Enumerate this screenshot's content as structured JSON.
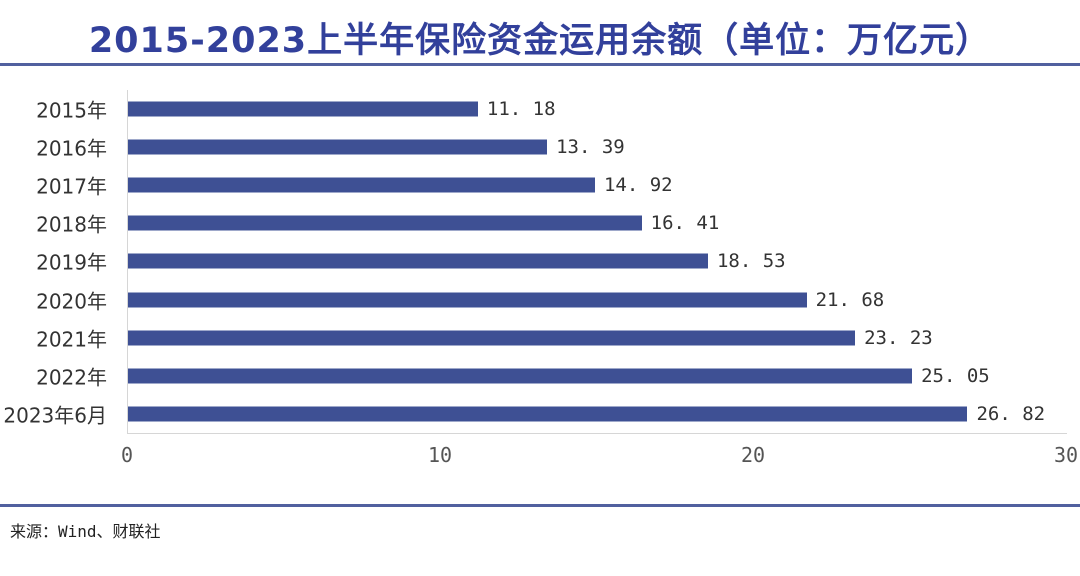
{
  "title": "2015-2023上半年保险资金运用余额（单位：万亿元）",
  "source": "来源：Wind、财联社",
  "colors": {
    "title_text": "#32409B",
    "divider_rule": "#51609F",
    "bar": "#3E5094",
    "axis_line": "#D6D6D6",
    "label_text": "#333333"
  },
  "chart_data": {
    "type": "bar",
    "orientation": "horizontal",
    "title": "2015-2023上半年保险资金运用余额（单位：万亿元）",
    "xlabel": "",
    "ylabel": "",
    "categories": [
      "2015年",
      "2016年",
      "2017年",
      "2018年",
      "2019年",
      "2020年",
      "2021年",
      "2022年",
      "2023年6月"
    ],
    "values": [
      11.18,
      13.39,
      14.92,
      16.41,
      18.53,
      21.68,
      23.23,
      25.05,
      26.82
    ],
    "value_labels": [
      "11. 18",
      "13. 39",
      "14. 92",
      "16. 41",
      "18. 53",
      "21. 68",
      "23. 23",
      "25. 05",
      "26. 82"
    ],
    "xlim": [
      0,
      30
    ],
    "x_ticks": [
      0,
      10,
      20,
      30
    ],
    "grid": false,
    "legend": false,
    "bar_color": "#3E5094"
  }
}
